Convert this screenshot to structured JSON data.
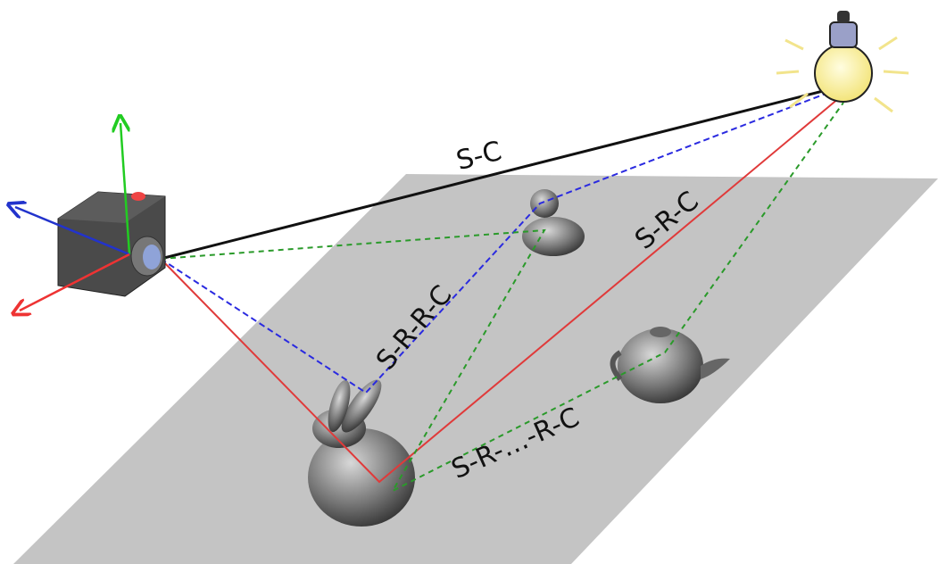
{
  "paths": [
    {
      "label": "S-C"
    },
    {
      "label": "S-R-R-C"
    },
    {
      "label": "S-R-C"
    },
    {
      "label": "S-R-…-R-C"
    }
  ]
}
